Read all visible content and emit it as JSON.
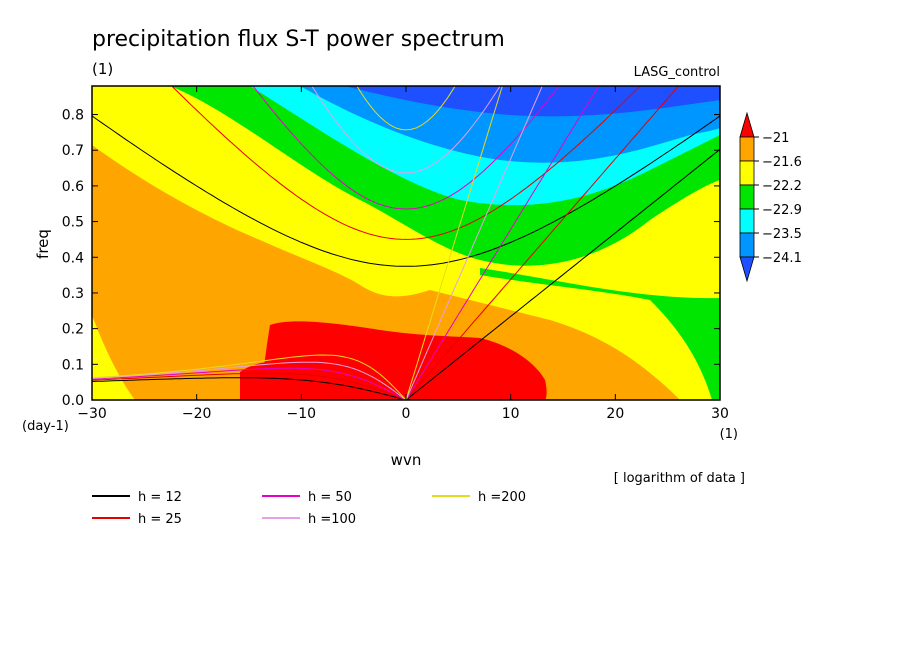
{
  "chart_data": {
    "type": "heatmap",
    "title": "precipitation flux S-T power spectrum",
    "unit_label": "(1)",
    "run_label": "LASG_control",
    "xlabel": "wvn",
    "ylabel": "freq",
    "x_unit": "(1)",
    "y_unit": "(day-1)",
    "xlim": [
      -30,
      30
    ],
    "ylim": [
      0,
      0.88
    ],
    "x_ticks": [
      -30,
      -20,
      -10,
      0,
      10,
      20,
      30
    ],
    "y_ticks": [
      0.0,
      0.1,
      0.2,
      0.3,
      0.4,
      0.5,
      0.6,
      0.7,
      0.8
    ],
    "x_tick_labels": [
      "−30",
      "−20",
      "−10",
      "0",
      "10",
      "20",
      "30"
    ],
    "y_tick_labels": [
      "0.0",
      "0.1",
      "0.2",
      "0.3",
      "0.4",
      "0.5",
      "0.6",
      "0.7",
      "0.8"
    ],
    "note": "[ logarithm of data ]",
    "colorbar": {
      "levels": [
        -21,
        -21.6,
        -22.2,
        -22.9,
        -23.5,
        -24.1
      ],
      "level_labels": [
        "−21",
        "−21.6",
        "−22.2",
        "−22.9",
        "−23.5",
        "−24.1"
      ],
      "colors": [
        "#ff0000",
        "#ffa500",
        "#ffff00",
        "#00e600",
        "#00ffff",
        "#0096ff",
        "#1e50ff"
      ]
    },
    "dispersion_curves": [
      {
        "label": "h = 12",
        "h": 12,
        "color": "#000000"
      },
      {
        "label": "h = 25",
        "h": 25,
        "color": "#e60000"
      },
      {
        "label": "h = 50",
        "h": 50,
        "color": "#e600c8"
      },
      {
        "label": "h =100",
        "h": 100,
        "color": "#e6a0e6"
      },
      {
        "label": "h =200",
        "h": 200,
        "color": "#e6dc1e"
      }
    ]
  }
}
